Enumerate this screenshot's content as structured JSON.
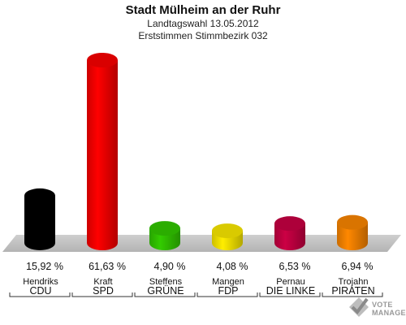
{
  "header": {
    "title": "Stadt Mülheim an der Ruhr",
    "subtitle1": "Landtagswahl 13.05.2012",
    "subtitle2": "Erststimmen Stimmbezirk 032"
  },
  "chart_data": {
    "type": "bar",
    "title": "Stadt Mülheim an der Ruhr",
    "subtitle": "Landtagswahl 13.05.2012 — Erststimmen Stimmbezirk 032",
    "categories": [
      "CDU",
      "SPD",
      "GRÜNE",
      "FDP",
      "DIE LINKE",
      "PIRATEN"
    ],
    "candidates": [
      "Hendriks",
      "Kraft",
      "Steffens",
      "Mangen",
      "Pernau",
      "Trojahn"
    ],
    "values": [
      15.92,
      61.63,
      4.9,
      4.08,
      6.53,
      6.94
    ],
    "value_labels": [
      "15,92 %",
      "61,63 %",
      "4,90 %",
      "4,08 %",
      "6,53 %",
      "6,94 %"
    ],
    "colors": [
      "#000000",
      "#ff0000",
      "#33cc00",
      "#ffee00",
      "#cc0044",
      "#ff8800"
    ],
    "unit": "%",
    "grid": false,
    "legend": "none"
  },
  "logo": {
    "line1": "VOTE",
    "line2": "MANAGER"
  }
}
